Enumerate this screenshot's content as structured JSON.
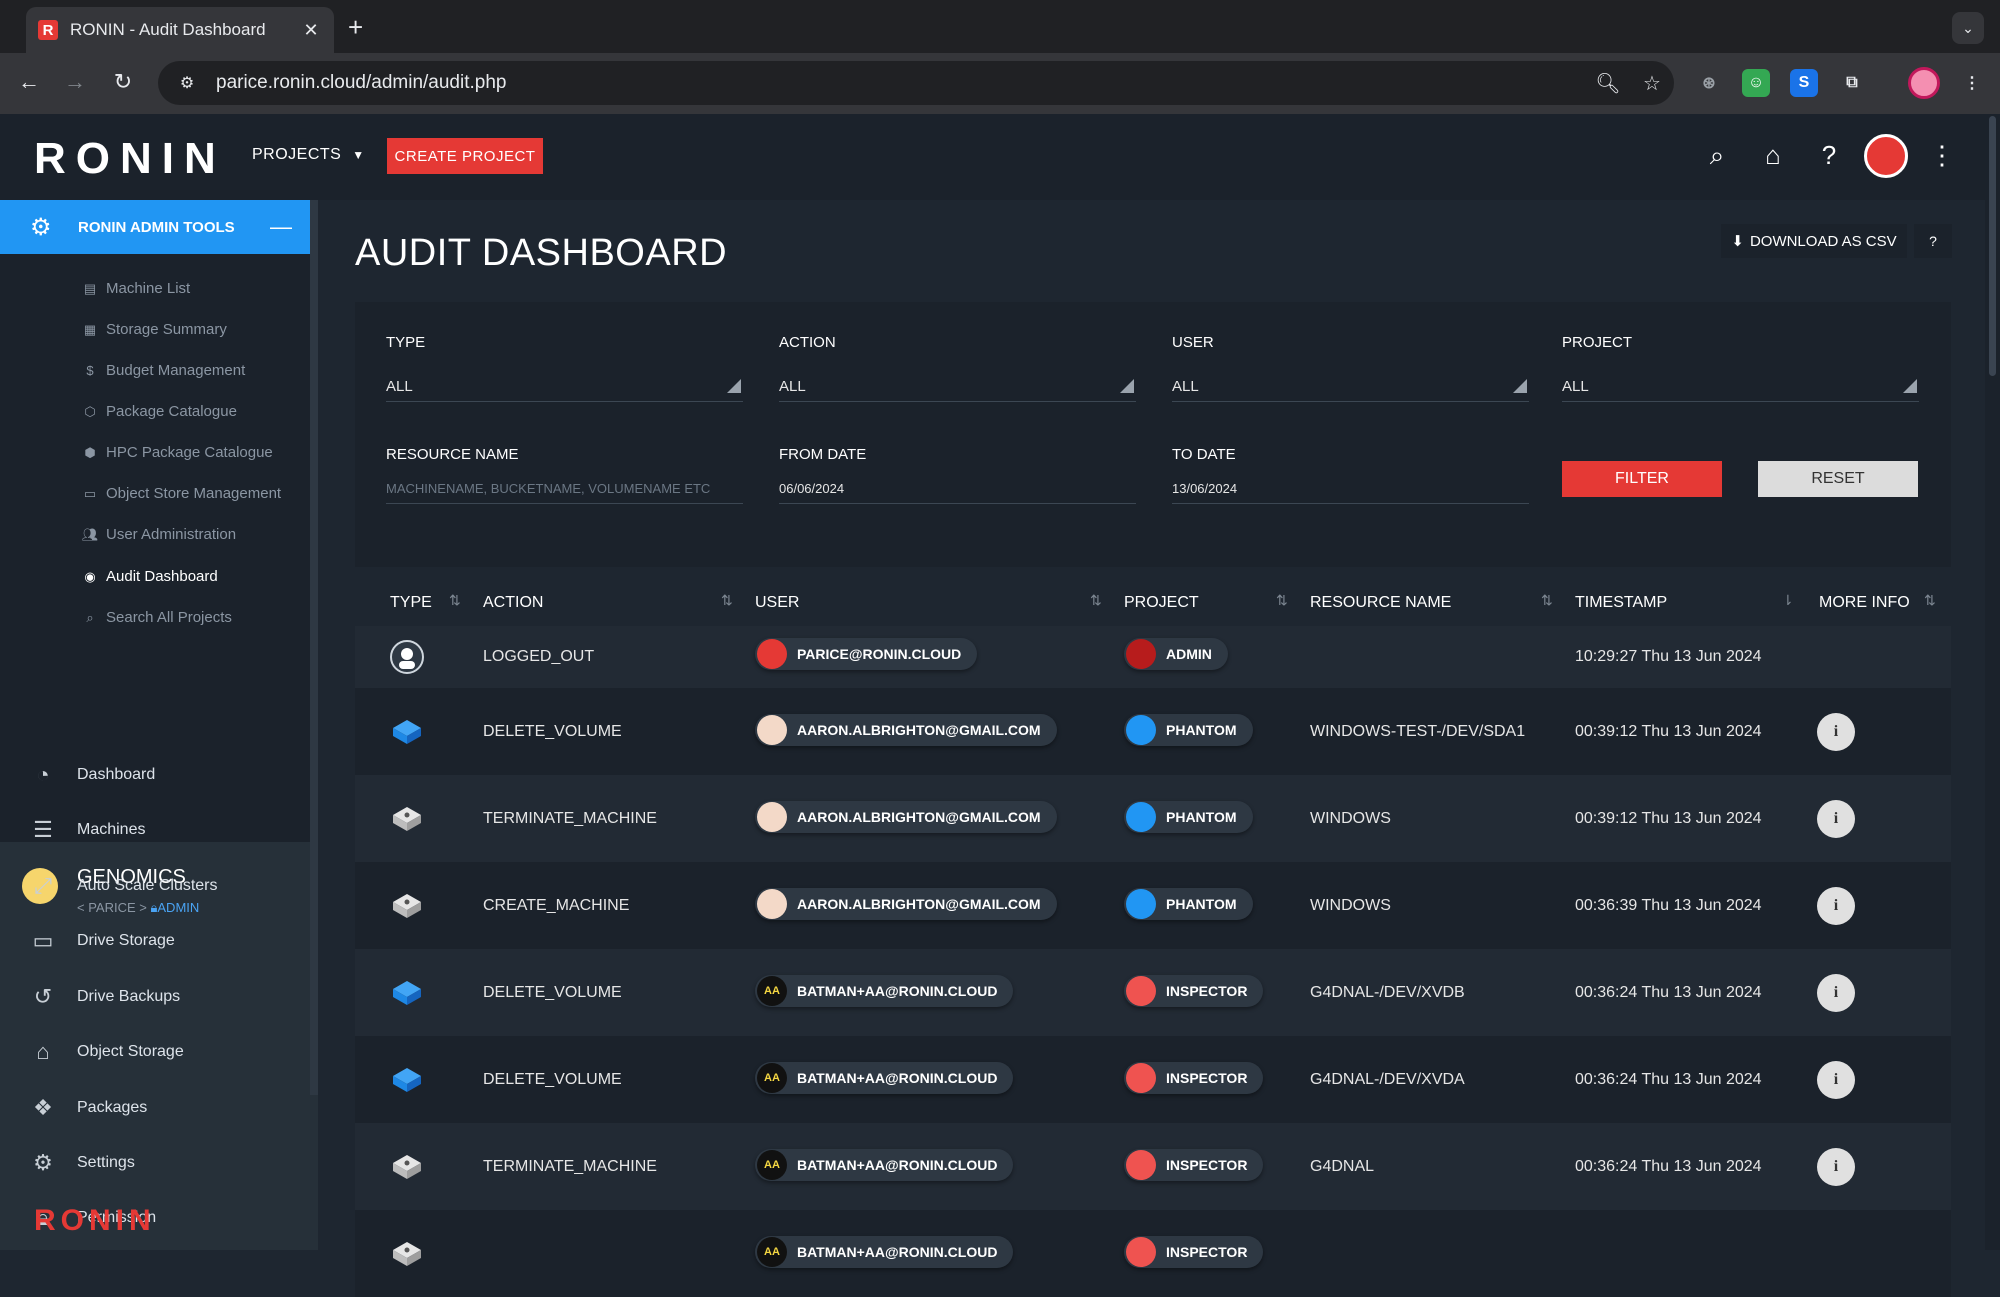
{
  "browser": {
    "tab_title": "RONIN - Audit Dashboard",
    "favicon_letter": "R",
    "url": "parice.ronin.cloud/admin/audit.php"
  },
  "header": {
    "logo": "RONIN",
    "projects_label": "PROJECTS",
    "create_project_label": "CREATE PROJECT"
  },
  "sidebar": {
    "admin_tools_label": "RONIN ADMIN TOOLS",
    "admin_items": [
      {
        "label": "Machine List",
        "icon": "list-icon"
      },
      {
        "label": "Storage Summary",
        "icon": "storage-icon"
      },
      {
        "label": "Budget Management",
        "icon": "dollar-icon"
      },
      {
        "label": "Package Catalogue",
        "icon": "package-icon"
      },
      {
        "label": "HPC Package Catalogue",
        "icon": "cubes-icon"
      },
      {
        "label": "Object Store Management",
        "icon": "folder-icon"
      },
      {
        "label": "User Administration",
        "icon": "users-icon"
      },
      {
        "label": "Audit Dashboard",
        "icon": "eye-icon"
      },
      {
        "label": "Search All Projects",
        "icon": "search-icon"
      }
    ],
    "project_name": "GENOMICS",
    "project_crumb_user": "< PARICE >",
    "project_crumb_role": "ADMIN",
    "nav_items": [
      {
        "label": "Dashboard",
        "icon": "dashboard-icon"
      },
      {
        "label": "Machines",
        "icon": "server-icon"
      },
      {
        "label": "Auto Scale Clusters",
        "icon": "expand-icon"
      },
      {
        "label": "Drive Storage",
        "icon": "drive-icon"
      },
      {
        "label": "Drive Backups",
        "icon": "history-icon"
      },
      {
        "label": "Object Storage",
        "icon": "folder-open-icon"
      },
      {
        "label": "Packages",
        "icon": "dropbox-icon"
      },
      {
        "label": "Settings",
        "icon": "gear-icon"
      },
      {
        "label": "Permission",
        "icon": "lock-icon"
      }
    ],
    "bottom_logo": "RONIN"
  },
  "main": {
    "title": "AUDIT DASHBOARD",
    "download_csv_label": "DOWNLOAD AS CSV",
    "filters": {
      "type_label": "TYPE",
      "type_value": "ALL",
      "action_label": "ACTION",
      "action_value": "ALL",
      "user_label": "USER",
      "user_value": "ALL",
      "project_label": "PROJECT",
      "project_value": "ALL",
      "resource_label": "RESOURCE NAME",
      "resource_placeholder": "MACHINENAME, BUCKETNAME, VOLUMENAME ETC",
      "from_label": "FROM DATE",
      "from_value": "06/06/2024",
      "to_label": "TO DATE",
      "to_value": "13/06/2024",
      "filter_label": "FILTER",
      "reset_label": "RESET"
    },
    "columns": [
      "TYPE",
      "ACTION",
      "USER",
      "PROJECT",
      "RESOURCE NAME",
      "TIMESTAMP",
      "MORE INFO"
    ],
    "rows": [
      {
        "type": "user",
        "action": "LOGGED_OUT",
        "user": "PARICE@RONIN.CLOUD",
        "project": "ADMIN",
        "resource": "",
        "timestamp": "10:29:27 Thu 13 Jun 2024",
        "info": false
      },
      {
        "type": "volume",
        "action": "DELETE_VOLUME",
        "user": "AARON.ALBRIGHTON@GMAIL.COM",
        "project": "PHANTOM",
        "resource": "WINDOWS-TEST-/DEV/SDA1",
        "timestamp": "00:39:12 Thu 13 Jun 2024",
        "info": true
      },
      {
        "type": "machine",
        "action": "TERMINATE_MACHINE",
        "user": "AARON.ALBRIGHTON@GMAIL.COM",
        "project": "PHANTOM",
        "resource": "WINDOWS",
        "timestamp": "00:39:12 Thu 13 Jun 2024",
        "info": true
      },
      {
        "type": "machine",
        "action": "CREATE_MACHINE",
        "user": "AARON.ALBRIGHTON@GMAIL.COM",
        "project": "PHANTOM",
        "resource": "WINDOWS",
        "timestamp": "00:36:39 Thu 13 Jun 2024",
        "info": true
      },
      {
        "type": "volume",
        "action": "DELETE_VOLUME",
        "user": "BATMAN+AA@RONIN.CLOUD",
        "project": "INSPECTOR",
        "resource": "G4DNAL-/DEV/XVDB",
        "timestamp": "00:36:24 Thu 13 Jun 2024",
        "info": true
      },
      {
        "type": "volume",
        "action": "DELETE_VOLUME",
        "user": "BATMAN+AA@RONIN.CLOUD",
        "project": "INSPECTOR",
        "resource": "G4DNAL-/DEV/XVDA",
        "timestamp": "00:36:24 Thu 13 Jun 2024",
        "info": true
      },
      {
        "type": "machine",
        "action": "TERMINATE_MACHINE",
        "user": "BATMAN+AA@RONIN.CLOUD",
        "project": "INSPECTOR",
        "resource": "G4DNAL",
        "timestamp": "00:36:24 Thu 13 Jun 2024",
        "info": true
      },
      {
        "type": "machine",
        "action": "",
        "user": "BATMAN+AA@RONIN.CLOUD",
        "project": "INSPECTOR",
        "resource": "",
        "timestamp": "",
        "info": false
      }
    ],
    "info_glyph": "i"
  },
  "colors": {
    "accent_red": "#e53935",
    "accent_blue": "#2196f3",
    "panel": "#1b222b",
    "background": "#1e2630"
  }
}
